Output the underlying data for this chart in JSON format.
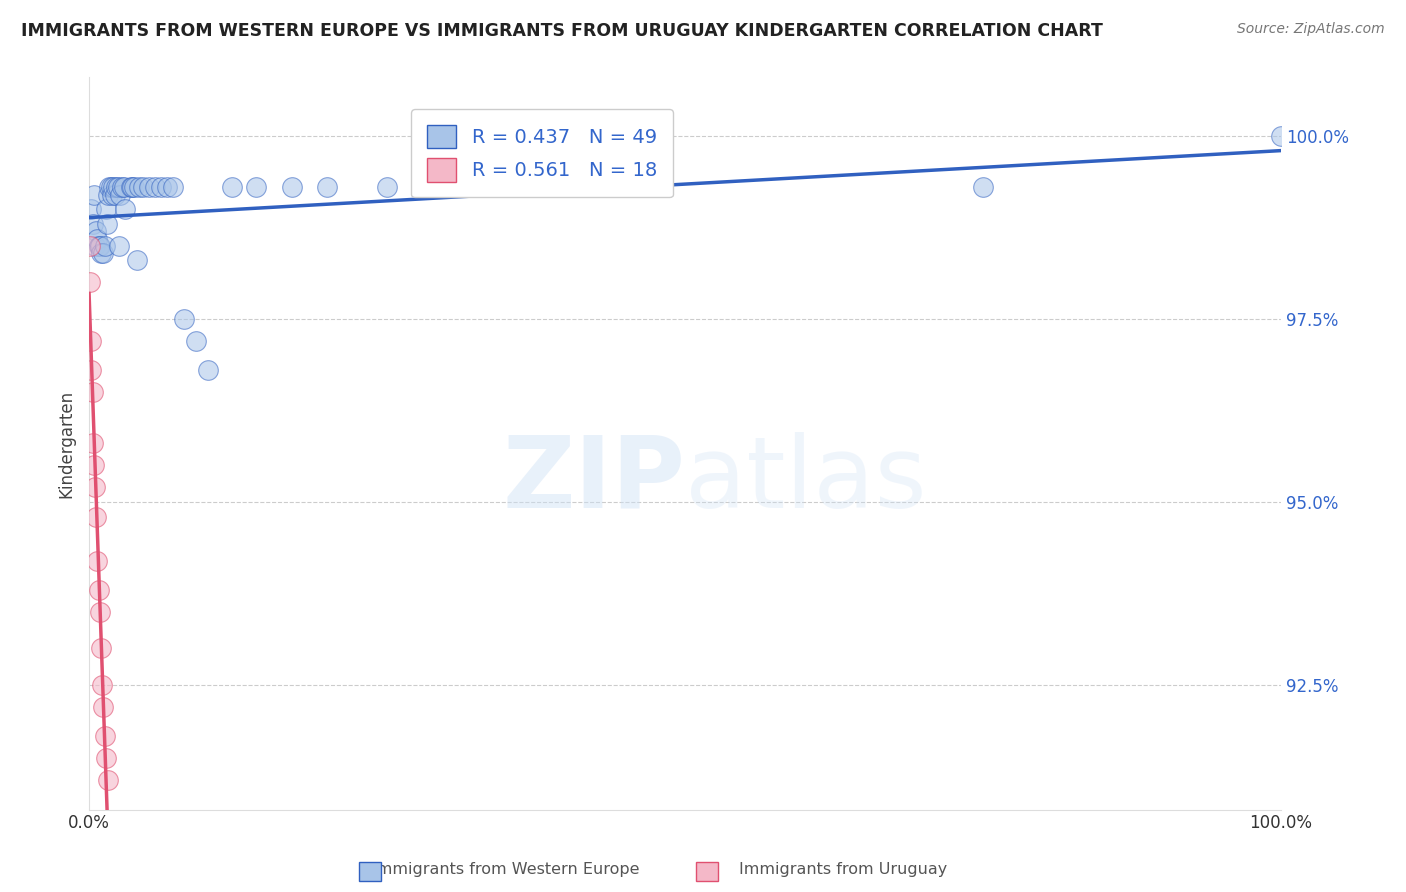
{
  "title": "IMMIGRANTS FROM WESTERN EUROPE VS IMMIGRANTS FROM URUGUAY KINDERGARTEN CORRELATION CHART",
  "source": "Source: ZipAtlas.com",
  "ylabel": "Kindergarten",
  "xlim": [
    0.0,
    1.0
  ],
  "ylim": [
    0.908,
    1.008
  ],
  "blue_R": 0.437,
  "blue_N": 49,
  "pink_R": 0.561,
  "pink_N": 18,
  "blue_color": "#a8c4e8",
  "pink_color": "#f4b8c8",
  "blue_line_color": "#3060c0",
  "pink_line_color": "#e05070",
  "legend_label_blue": "Immigrants from Western Europe",
  "legend_label_pink": "Immigrants from Uruguay",
  "background_color": "#ffffff",
  "grid_color": "#cccccc",
  "blue_x": [
    0.002,
    0.003,
    0.004,
    0.005,
    0.006,
    0.007,
    0.008,
    0.009,
    0.01,
    0.012,
    0.013,
    0.014,
    0.015,
    0.016,
    0.017,
    0.018,
    0.019,
    0.02,
    0.022,
    0.023,
    0.024,
    0.025,
    0.026,
    0.028,
    0.029,
    0.03,
    0.035,
    0.036,
    0.038,
    0.04,
    0.042,
    0.045,
    0.05,
    0.055,
    0.06,
    0.065,
    0.07,
    0.08,
    0.09,
    0.1,
    0.12,
    0.14,
    0.17,
    0.2,
    0.25,
    0.3,
    0.35,
    0.75,
    1.0
  ],
  "blue_y": [
    0.99,
    0.988,
    0.992,
    0.985,
    0.987,
    0.986,
    0.985,
    0.985,
    0.984,
    0.984,
    0.985,
    0.99,
    0.988,
    0.992,
    0.993,
    0.993,
    0.992,
    0.993,
    0.992,
    0.993,
    0.993,
    0.985,
    0.992,
    0.993,
    0.993,
    0.99,
    0.993,
    0.993,
    0.993,
    0.983,
    0.993,
    0.993,
    0.993,
    0.993,
    0.993,
    0.993,
    0.993,
    0.975,
    0.972,
    0.968,
    0.993,
    0.993,
    0.993,
    0.993,
    0.993,
    0.993,
    0.993,
    0.993,
    1.0
  ],
  "pink_x": [
    0.001,
    0.001,
    0.002,
    0.002,
    0.003,
    0.003,
    0.004,
    0.005,
    0.006,
    0.007,
    0.008,
    0.009,
    0.01,
    0.011,
    0.012,
    0.013,
    0.014,
    0.016
  ],
  "pink_y": [
    0.985,
    0.98,
    0.972,
    0.968,
    0.965,
    0.958,
    0.955,
    0.952,
    0.948,
    0.942,
    0.938,
    0.935,
    0.93,
    0.925,
    0.922,
    0.918,
    0.915,
    0.912
  ],
  "ytick_vals": [
    1.0,
    0.975,
    0.95,
    0.925
  ],
  "ytick_labels": [
    "100.0%",
    "97.5%",
    "95.0%",
    "92.5%"
  ],
  "xtick_vals": [
    0.0,
    1.0
  ],
  "xtick_labels": [
    "0.0%",
    "100.0%"
  ]
}
